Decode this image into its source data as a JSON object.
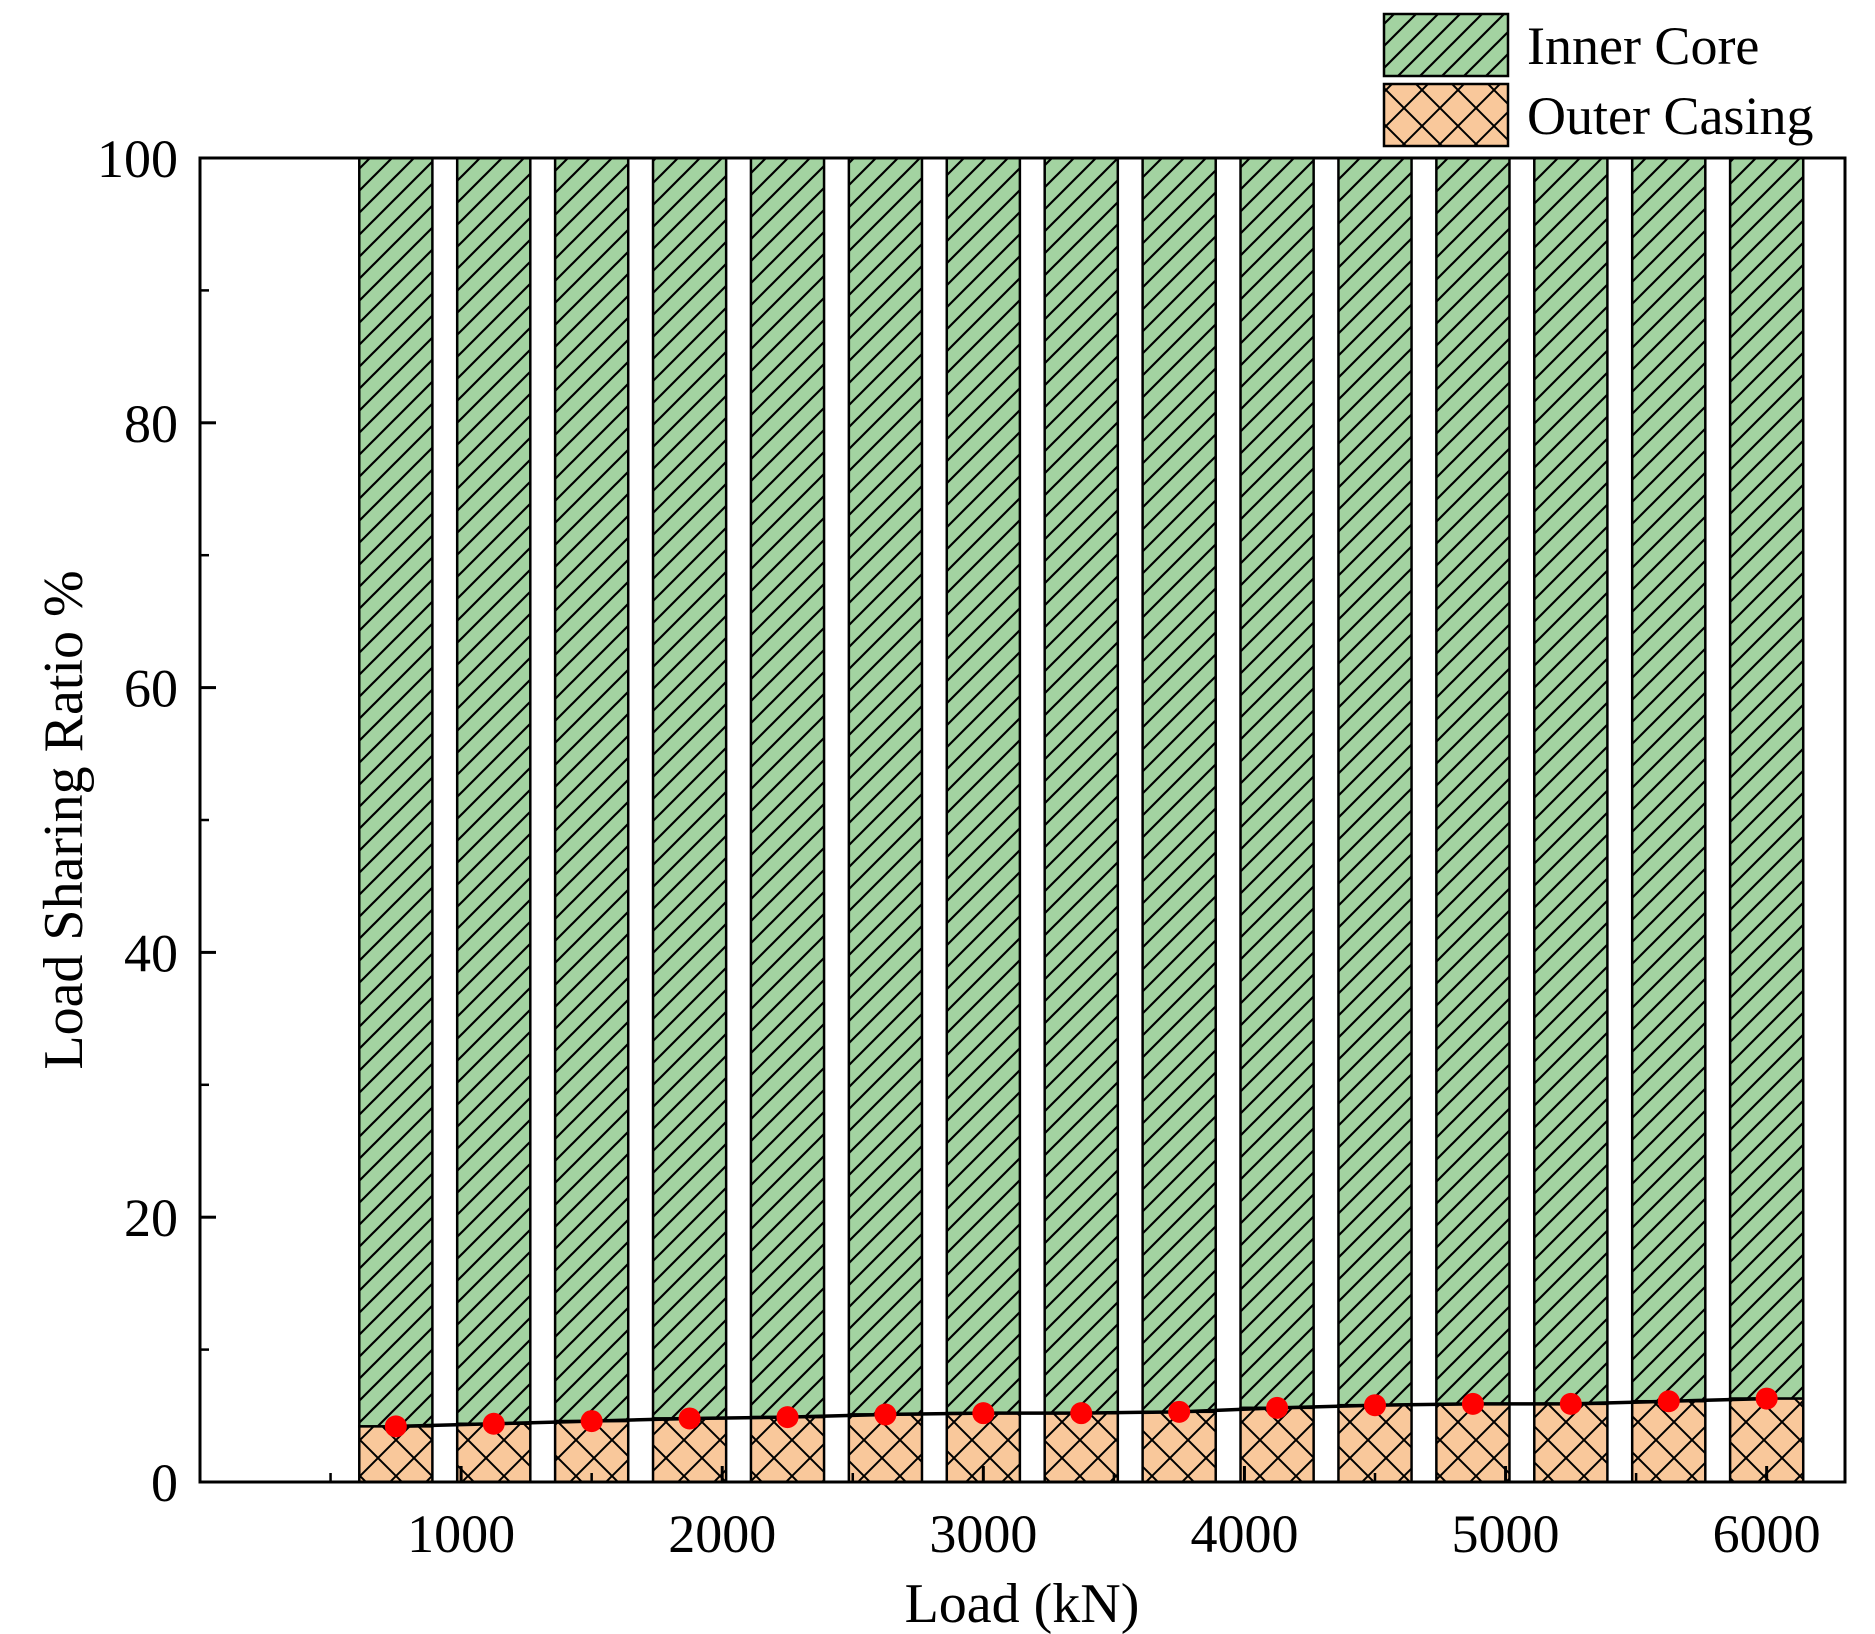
{
  "colors": {
    "inner_core_fill": "#a3d3a1",
    "outer_casing_fill": "#f9c89b",
    "hatch": "#000000",
    "marker": "#ff0000",
    "line": "#000000",
    "axis": "#000000"
  },
  "chart_data": {
    "type": "bar",
    "stacked": true,
    "title": "",
    "xlabel": "Load  (kN)",
    "ylabel": "Load Sharing Ratio %",
    "x": [
      750,
      1125,
      1500,
      1875,
      2250,
      2625,
      3000,
      3375,
      3750,
      4125,
      4500,
      4875,
      5250,
      5625,
      6000
    ],
    "xlim": [
      0,
      6300
    ],
    "ylim": [
      0,
      100
    ],
    "xticks": [
      1000,
      2000,
      3000,
      4000,
      5000,
      6000
    ],
    "yticks": [
      0,
      20,
      40,
      60,
      80,
      100
    ],
    "x_tick_labels": [
      "1000",
      "2000",
      "3000",
      "4000",
      "5000",
      "6000"
    ],
    "y_tick_labels": [
      "0",
      "20",
      "40",
      "60",
      "80",
      "100"
    ],
    "bar_width": 280,
    "series": [
      {
        "name": "Outer Casing",
        "pattern": "crosshatch",
        "values": [
          4.2,
          4.4,
          4.6,
          4.8,
          4.9,
          5.1,
          5.2,
          5.2,
          5.3,
          5.6,
          5.8,
          5.9,
          5.9,
          6.1,
          6.3
        ]
      },
      {
        "name": "Inner Core",
        "pattern": "diagonal",
        "values": [
          95.8,
          95.6,
          95.4,
          95.2,
          95.1,
          94.9,
          94.8,
          94.8,
          94.7,
          94.4,
          94.2,
          94.1,
          94.1,
          93.9,
          93.7
        ]
      }
    ],
    "overlay": {
      "type": "line+marker",
      "series": "Outer Casing",
      "values": [
        4.2,
        4.4,
        4.6,
        4.8,
        4.9,
        5.1,
        5.2,
        5.2,
        5.3,
        5.6,
        5.8,
        5.9,
        5.9,
        6.1,
        6.3
      ]
    },
    "legend": {
      "placement": "top-right",
      "entries": [
        "Inner Core",
        "Outer Casing"
      ]
    },
    "grid": false
  }
}
